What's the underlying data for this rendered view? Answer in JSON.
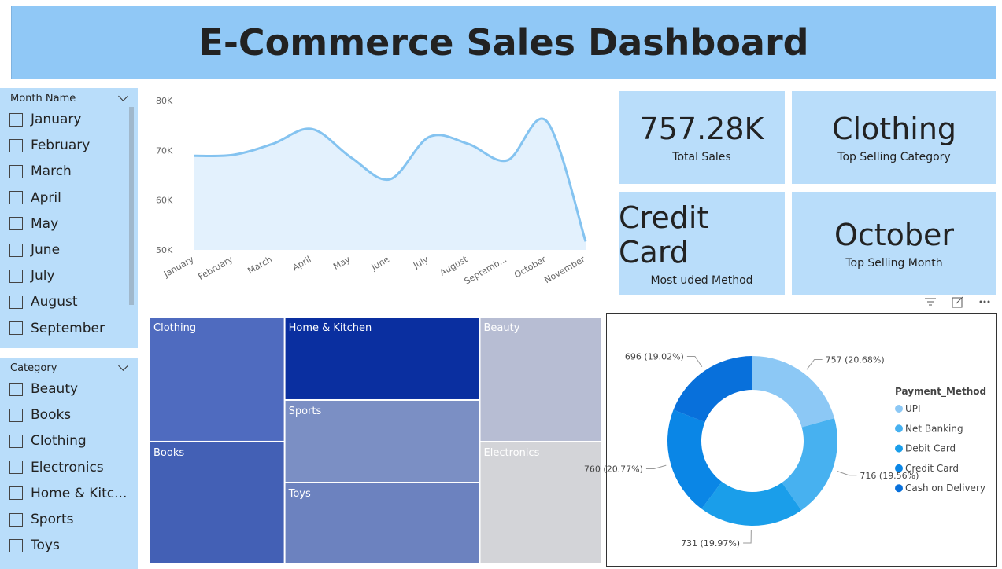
{
  "header": {
    "title": "E-Commerce Sales Dashboard"
  },
  "slicers": [
    {
      "title": "Month Name",
      "items": [
        "January",
        "February",
        "March",
        "April",
        "May",
        "June",
        "July",
        "August",
        "September"
      ]
    },
    {
      "title": "Category",
      "items": [
        "Beauty",
        "Books",
        "Clothing",
        "Electronics",
        "Home & Kitc...",
        "Sports",
        "Toys"
      ]
    }
  ],
  "cards": [
    {
      "value": "757.28K",
      "label": "Total Sales"
    },
    {
      "value": "Clothing",
      "label": "Top Selling Category"
    },
    {
      "value": "Credit Card",
      "label": "Most uded Method"
    },
    {
      "value": "October",
      "label": "Top Selling Month"
    }
  ],
  "chart_data": [
    {
      "type": "line",
      "color": "#84c3f0",
      "area_color": "#e3f1fd",
      "categories": [
        "January",
        "February",
        "March",
        "April",
        "May",
        "June",
        "July",
        "August",
        "Septemb...",
        "October",
        "November"
      ],
      "values": [
        68900,
        69100,
        71300,
        74300,
        68600,
        64200,
        72700,
        71300,
        68000,
        75900,
        51700
      ],
      "ylim": [
        50000,
        80000
      ],
      "yticks": [
        {
          "value": 50000,
          "label": "50K"
        },
        {
          "value": 60000,
          "label": "60K"
        },
        {
          "value": 70000,
          "label": "70K"
        },
        {
          "value": 80000,
          "label": "80K"
        }
      ]
    },
    {
      "type": "treemap",
      "categories": [
        "Clothing",
        "Books",
        "Home & Kitchen",
        "Sports",
        "Toys",
        "Beauty",
        "Electronics"
      ],
      "values": [
        114400,
        111600,
        110200,
        109200,
        107100,
        103700,
        101100
      ],
      "colors": [
        "#4f6bbf",
        "#4360b5",
        "#0a2fa0",
        "#7b8fc4",
        "#6c82bf",
        "#b7bdd3",
        "#d3d4d8"
      ]
    },
    {
      "type": "donut",
      "legend_title": "Payment_Method",
      "legend_position": "right",
      "categories": [
        "UPI",
        "Net Banking",
        "Debit Card",
        "Credit Card",
        "Cash on Delivery"
      ],
      "values": [
        757,
        716,
        731,
        760,
        696
      ],
      "value_labels": [
        "757 (20.68%)",
        "716 (19.56%)",
        "731 (19.97%)",
        "760 (20.77%)",
        "696 (19.02%)"
      ],
      "colors": [
        "#8cc8f5",
        "#47b1f0",
        "#1a9eea",
        "#0a86e6",
        "#0870db"
      ]
    }
  ]
}
